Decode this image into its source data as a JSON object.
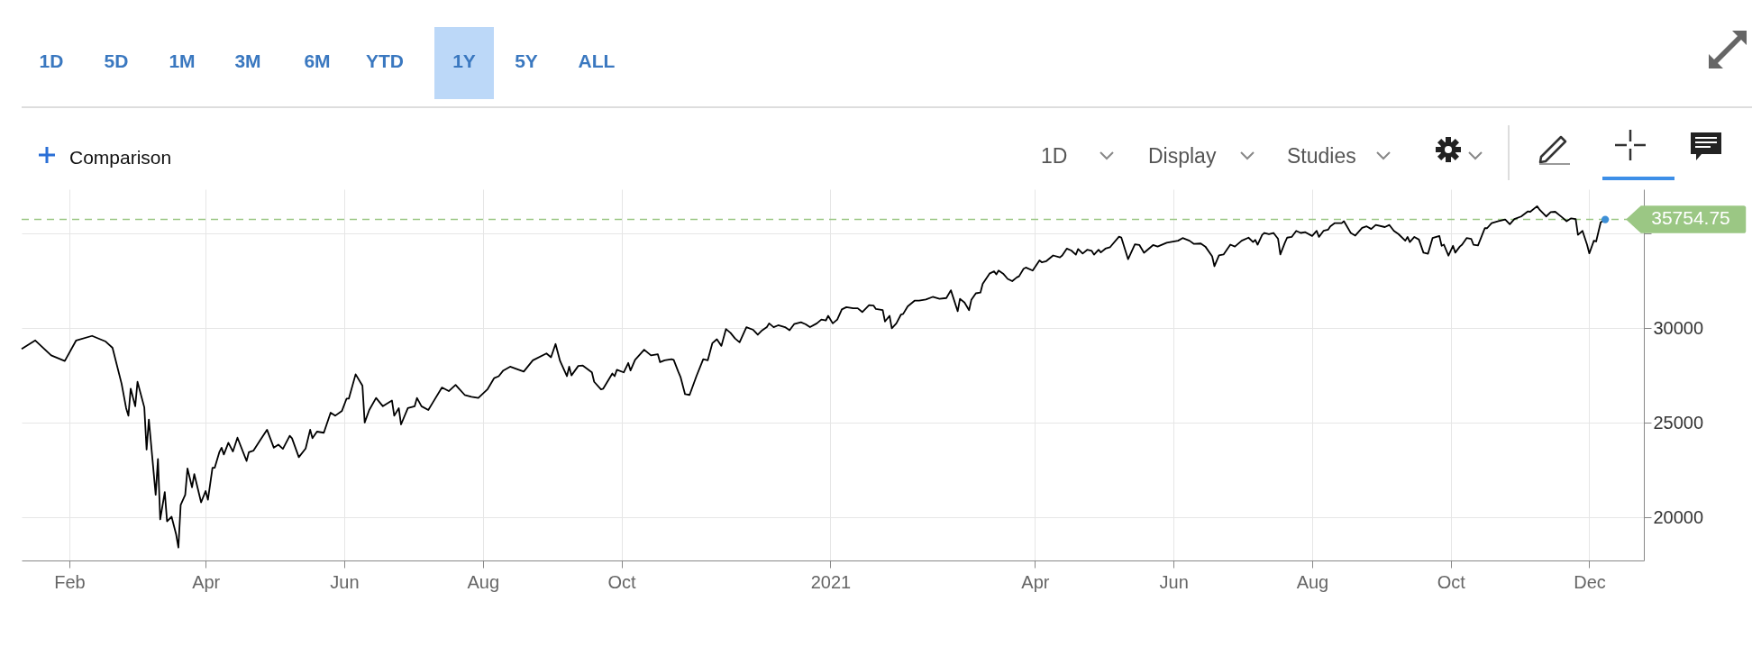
{
  "chart_data": {
    "type": "line",
    "annotations": [
      "1D",
      "5D",
      "1M",
      "3M",
      "6M",
      "YTD",
      "1Y",
      "5Y",
      "ALL",
      "Comparison",
      "1D",
      "Display",
      "Studies"
    ],
    "series": [
      {
        "type": "line",
        "color": "#000000",
        "x": [
          "2020-01-11",
          "2020-01-17",
          "2020-01-24",
          "2020-01-30",
          "2020-02-04",
          "2020-02-11",
          "2020-02-17",
          "2020-02-20",
          "2020-02-24",
          "2020-02-26",
          "2020-02-27",
          "2020-02-28",
          "2020-03-01",
          "2020-03-02",
          "2020-03-05",
          "2020-03-06",
          "2020-03-07",
          "2020-03-10",
          "2020-03-11",
          "2020-03-12",
          "2020-03-14",
          "2020-03-15",
          "2020-03-17",
          "2020-03-19",
          "2020-03-20",
          "2020-03-21",
          "2020-03-23",
          "2020-03-24",
          "2020-03-26",
          "2020-03-27",
          "2020-03-30",
          "2020-04-01",
          "2020-04-02",
          "2020-04-04",
          "2020-04-05",
          "2020-04-07",
          "2020-04-08",
          "2020-04-09",
          "2020-04-11",
          "2020-04-13",
          "2020-04-15",
          "2020-04-19",
          "2020-04-20",
          "2020-04-22",
          "2020-04-25",
          "2020-04-28",
          "2020-05-01",
          "2020-05-03",
          "2020-05-05",
          "2020-05-08",
          "2020-05-09",
          "2020-05-12",
          "2020-05-15",
          "2020-05-17",
          "2020-05-18",
          "2020-05-20",
          "2020-05-23",
          "2020-05-26",
          "2020-05-28",
          "2020-05-31",
          "2020-06-02",
          "2020-06-03",
          "2020-06-06",
          "2020-06-09",
          "2020-06-10",
          "2020-06-12",
          "2020-06-15",
          "2020-06-18",
          "2020-06-22",
          "2020-06-23",
          "2020-06-25",
          "2020-06-26",
          "2020-06-29",
          "2020-07-02",
          "2020-07-03",
          "2020-07-05",
          "2020-07-08",
          "2020-07-10",
          "2020-07-14",
          "2020-07-17",
          "2020-07-20",
          "2020-07-24",
          "2020-07-27",
          "2020-07-30",
          "2020-08-03",
          "2020-08-06",
          "2020-08-08",
          "2020-08-10",
          "2020-08-13",
          "2020-08-19",
          "2020-08-23",
          "2020-08-29",
          "2020-08-31",
          "2020-09-02",
          "2020-09-04",
          "2020-09-07",
          "2020-09-08",
          "2020-09-09",
          "2020-09-12",
          "2020-09-14",
          "2020-09-18",
          "2020-09-19",
          "2020-09-22",
          "2020-09-23",
          "2020-09-27",
          "2020-09-28",
          "2020-09-29",
          "2020-10-02",
          "2020-10-04",
          "2020-10-05",
          "2020-10-07",
          "2020-10-11",
          "2020-10-14",
          "2020-10-17",
          "2020-10-18",
          "2020-10-20",
          "2020-10-23",
          "2020-10-24",
          "2020-10-26",
          "2020-10-27",
          "2020-10-29",
          "2020-10-31",
          "2020-11-03",
          "2020-11-06",
          "2020-11-08",
          "2020-11-10",
          "2020-11-12",
          "2020-11-14",
          "2020-11-16",
          "2020-11-18",
          "2020-11-20",
          "2020-11-22",
          "2020-11-25",
          "2020-11-28",
          "2020-11-30",
          "2020-12-02",
          "2020-12-04",
          "2020-12-05",
          "2020-12-07",
          "2020-12-09",
          "2020-12-12",
          "2020-12-14",
          "2020-12-16",
          "2020-12-19",
          "2020-12-21",
          "2020-12-23",
          "2020-12-26",
          "2020-12-28",
          "2020-12-30",
          "2020-12-31",
          "2021-01-02",
          "2021-01-04",
          "2021-01-06",
          "2021-01-08",
          "2021-01-11",
          "2021-01-13",
          "2021-01-15",
          "2021-01-18",
          "2021-01-20",
          "2021-01-21",
          "2021-01-24",
          "2021-01-25",
          "2021-01-27",
          "2021-01-28",
          "2021-01-30",
          "2021-02-01",
          "2021-02-02",
          "2021-02-04",
          "2021-02-07",
          "2021-02-09",
          "2021-02-12",
          "2021-02-15",
          "2021-02-18",
          "2021-02-21",
          "2021-02-23",
          "2021-02-26",
          "2021-02-27",
          "2021-03-01",
          "2021-03-03",
          "2021-03-04",
          "2021-03-06",
          "2021-03-08",
          "2021-03-09",
          "2021-03-12",
          "2021-03-14",
          "2021-03-15",
          "2021-03-16",
          "2021-03-18",
          "2021-03-20",
          "2021-03-22",
          "2021-03-24",
          "2021-03-25",
          "2021-03-27",
          "2021-03-28",
          "2021-03-31",
          "2021-04-03",
          "2021-04-04",
          "2021-04-06",
          "2021-04-09",
          "2021-04-12",
          "2021-04-13",
          "2021-04-15",
          "2021-04-17",
          "2021-04-19",
          "2021-04-20",
          "2021-04-22",
          "2021-04-24",
          "2021-04-26",
          "2021-04-27",
          "2021-04-29",
          "2021-04-30",
          "2021-05-02",
          "2021-05-04",
          "2021-05-08",
          "2021-05-09",
          "2021-05-12",
          "2021-05-15",
          "2021-05-17",
          "2021-05-19",
          "2021-05-23",
          "2021-05-25",
          "2021-05-29",
          "2021-06-03",
          "2021-06-05",
          "2021-06-08",
          "2021-06-10",
          "2021-06-13",
          "2021-06-15",
          "2021-06-18",
          "2021-06-19",
          "2021-06-21",
          "2021-06-23",
          "2021-06-26",
          "2021-06-28",
          "2021-07-01",
          "2021-07-04",
          "2021-07-06",
          "2021-07-07",
          "2021-07-08",
          "2021-07-10",
          "2021-07-11",
          "2021-07-13",
          "2021-07-15",
          "2021-07-17",
          "2021-07-18",
          "2021-07-20",
          "2021-07-21",
          "2021-07-23",
          "2021-07-25",
          "2021-07-27",
          "2021-07-29",
          "2021-08-01",
          "2021-08-03",
          "2021-08-04",
          "2021-08-06",
          "2021-08-08",
          "2021-08-09",
          "2021-08-11",
          "2021-08-14",
          "2021-08-15",
          "2021-08-18",
          "2021-08-20",
          "2021-08-23",
          "2021-08-25",
          "2021-08-27",
          "2021-08-29",
          "2021-09-02",
          "2021-09-04",
          "2021-09-06",
          "2021-09-08",
          "2021-09-11",
          "2021-09-12",
          "2021-09-13",
          "2021-09-15",
          "2021-09-17",
          "2021-09-19",
          "2021-09-21",
          "2021-09-23",
          "2021-09-26",
          "2021-09-27",
          "2021-09-28",
          "2021-09-30",
          "2021-10-02",
          "2021-10-03",
          "2021-10-05",
          "2021-10-06",
          "2021-10-08",
          "2021-10-10",
          "2021-10-11",
          "2021-10-13",
          "2021-10-16",
          "2021-10-17",
          "2021-10-19",
          "2021-10-22",
          "2021-10-25",
          "2021-10-27",
          "2021-10-29",
          "2021-11-01",
          "2021-11-04",
          "2021-11-05",
          "2021-11-08",
          "2021-11-09",
          "2021-11-12",
          "2021-11-14",
          "2021-11-16",
          "2021-11-19",
          "2021-11-21",
          "2021-11-23",
          "2021-11-25",
          "2021-11-26",
          "2021-11-28",
          "2021-11-30",
          "2021-12-01",
          "2021-12-03",
          "2021-12-04",
          "2021-12-06",
          "2021-12-08"
        ],
        "values": [
          28910,
          29360,
          28570,
          28270,
          29360,
          29600,
          29300,
          28970,
          27070,
          25780,
          25380,
          26810,
          25880,
          27170,
          25820,
          23590,
          25180,
          21200,
          23090,
          19900,
          21340,
          19800,
          20040,
          19110,
          18410,
          20660,
          21200,
          22590,
          21600,
          22290,
          20800,
          21400,
          20940,
          22630,
          22630,
          23450,
          23690,
          23330,
          23950,
          23490,
          24220,
          22990,
          23450,
          23530,
          24090,
          24640,
          23690,
          23850,
          23630,
          24320,
          24190,
          23190,
          23650,
          24640,
          24190,
          24540,
          24480,
          25540,
          25380,
          25640,
          26280,
          26280,
          27570,
          26970,
          25020,
          25680,
          26320,
          25880,
          26180,
          25380,
          25780,
          24920,
          25780,
          25880,
          26320,
          25880,
          25680,
          26080,
          26870,
          26680,
          27010,
          26480,
          26380,
          26320,
          26770,
          27370,
          27470,
          27770,
          27970,
          27710,
          28310,
          28670,
          28470,
          29170,
          28270,
          27470,
          27970,
          27510,
          28010,
          28030,
          27670,
          27170,
          26770,
          26810,
          27610,
          27470,
          27810,
          27670,
          28170,
          27770,
          28330,
          28870,
          28570,
          28630,
          28210,
          28310,
          28370,
          28330,
          27710,
          27430,
          26520,
          26480,
          27470,
          28370,
          28310,
          29210,
          29420,
          29070,
          29960,
          29760,
          29460,
          29260,
          30060,
          29920,
          29660,
          29900,
          30060,
          30260,
          30060,
          30160,
          30060,
          29900,
          30220,
          30320,
          30220,
          30060,
          30260,
          30460,
          30420,
          30660,
          30260,
          30460,
          31000,
          31120,
          31060,
          31060,
          30860,
          31220,
          31200,
          31020,
          30960,
          30360,
          30660,
          30000,
          30260,
          30720,
          30760,
          31160,
          31460,
          31460,
          31520,
          31660,
          31560,
          31600,
          32010,
          30900,
          31560,
          31360,
          30960,
          31500,
          31850,
          31890,
          32350,
          32890,
          33010,
          32850,
          33050,
          32890,
          32610,
          32490,
          32690,
          32750,
          33150,
          33210,
          33050,
          33590,
          33490,
          33550,
          33850,
          33750,
          33850,
          34210,
          34110,
          33890,
          34190,
          33950,
          34150,
          34090,
          33890,
          34150,
          34010,
          34210,
          34280,
          34840,
          34800,
          33650,
          34440,
          34400,
          33990,
          34400,
          34320,
          34520,
          34630,
          34770,
          34630,
          34460,
          34480,
          34320,
          33800,
          33280,
          33860,
          33900,
          34420,
          34320,
          34630,
          34790,
          34560,
          34670,
          34420,
          34940,
          35040,
          34980,
          35040,
          34730,
          33900,
          34520,
          34790,
          34830,
          35150,
          35040,
          35080,
          34880,
          35150,
          34830,
          35150,
          35210,
          35390,
          35560,
          35560,
          35660,
          35040,
          34900,
          35310,
          35390,
          35250,
          35460,
          35350,
          35460,
          35150,
          34980,
          34630,
          34830,
          34560,
          34830,
          34690,
          34000,
          33940,
          34770,
          34880,
          34360,
          34420,
          33840,
          34360,
          34000,
          34320,
          34420,
          34770,
          34730,
          34420,
          34380,
          35290,
          35290,
          35560,
          35660,
          35750,
          35500,
          35770,
          35910,
          36180,
          36160,
          36450,
          36290,
          35910,
          36140,
          36160,
          35870,
          35660,
          35810,
          35770,
          34940,
          35150,
          34420,
          33960,
          34630,
          34590,
          35600,
          35750
        ]
      },
      {
        "type": "scatter",
        "color": "#3d8fd6",
        "x": [
          "2021-12-08"
        ],
        "values": [
          35750
        ]
      }
    ],
    "xlim": [
      "2020-01-11",
      "2021-12-25"
    ],
    "xticks": [
      {
        "value": "2020-02-01",
        "label": "Feb"
      },
      {
        "value": "2020-04-01",
        "label": "Apr"
      },
      {
        "value": "2020-06-01",
        "label": "Jun"
      },
      {
        "value": "2020-08-01",
        "label": "Aug"
      },
      {
        "value": "2020-10-01",
        "label": "Oct"
      },
      {
        "value": "2021-01-01",
        "label": "2021"
      },
      {
        "value": "2021-04-01",
        "label": "Apr"
      },
      {
        "value": "2021-06-01",
        "label": "Jun"
      },
      {
        "value": "2021-08-01",
        "label": "Aug"
      },
      {
        "value": "2021-10-01",
        "label": "Oct"
      },
      {
        "value": "2021-12-01",
        "label": "Dec"
      }
    ],
    "ylim": [
      17730,
      37350
    ],
    "yticks": [
      20000,
      25000,
      30000,
      {
        "value": 35000,
        "label": null
      }
    ],
    "ref_lines": [
      {
        "axis": "y",
        "value": 35754.75,
        "label": "35754.75",
        "color": "#9bc784",
        "line_style": "dashed"
      }
    ],
    "grid": true
  }
}
